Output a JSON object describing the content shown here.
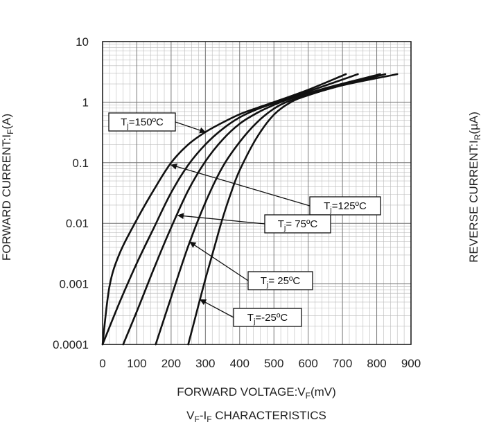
{
  "chart_data": {
    "type": "line",
    "title": "V_F-I_F CHARACTERISTICS",
    "title_parts": {
      "main_a": "V",
      "sub_a": "F",
      "main_b": "-I",
      "sub_b": "F",
      "main_c": " CHARACTERISTICS"
    },
    "xlabel": "FORWARD VOLTAGE:V_F(mV)",
    "xlabel_parts": {
      "main": "FORWARD VOLTAGE:V",
      "sub": "F",
      "tail": "(mV)"
    },
    "ylabel": "FORWARD CURRENT:I_F(A)",
    "ylabel_parts": {
      "main": "FORWARD CURRENT:I",
      "sub": "F",
      "tail": "(A)"
    },
    "ylabel_right": "REVERSE CURRENT:I_R(µA)",
    "ylabel_right_parts": {
      "main": "REVERSE CURRENT:I",
      "sub": "R",
      "tail": "(µA)"
    },
    "xlim": [
      0,
      900
    ],
    "ylim": [
      0.0001,
      10
    ],
    "yscale": "log",
    "grid": true,
    "x_ticks": [
      "0",
      "100",
      "200",
      "300",
      "400",
      "500",
      "600",
      "700",
      "800",
      "900"
    ],
    "y_ticks": [
      "10",
      "1",
      "0.1",
      "0.01",
      "0.001",
      "0.0001"
    ],
    "series": [
      {
        "name": "Tj=150ºC",
        "label_parts": {
          "a": "T",
          "sub": "j",
          "b": "=150ºC"
        },
        "x": [
          0,
          20,
          50,
          100,
          150,
          200,
          250,
          300,
          350,
          400,
          450,
          500,
          600,
          710
        ],
        "y": [
          0.0001,
          0.0009,
          0.0032,
          0.0115,
          0.036,
          0.1,
          0.2,
          0.32,
          0.46,
          0.63,
          0.8,
          1.0,
          1.6,
          2.9
        ]
      },
      {
        "name": "Tj=125ºC",
        "label_parts": {
          "a": "T",
          "sub": "j",
          "b": "=125ºC"
        },
        "x": [
          0,
          50,
          100,
          150,
          200,
          250,
          300,
          350,
          400,
          450,
          500,
          600,
          745
        ],
        "y": [
          0.0001,
          0.0005,
          0.0022,
          0.0085,
          0.032,
          0.092,
          0.2,
          0.36,
          0.56,
          0.76,
          0.96,
          1.5,
          2.9
        ]
      },
      {
        "name": "Tj= 75ºC",
        "label_parts": {
          "a": "T",
          "sub": "j",
          "b": "= 75ºC"
        },
        "x": [
          60,
          100,
          150,
          200,
          250,
          300,
          350,
          400,
          450,
          500,
          550,
          650,
          810
        ],
        "y": [
          0.0001,
          0.00035,
          0.0018,
          0.0085,
          0.035,
          0.105,
          0.24,
          0.44,
          0.66,
          0.9,
          1.15,
          1.7,
          2.9
        ]
      },
      {
        "name": "Tj= 25ºC",
        "label_parts": {
          "a": "T",
          "sub": "j",
          "b": "= 25ºC"
        },
        "x": [
          155,
          200,
          250,
          300,
          350,
          400,
          450,
          500,
          550,
          650,
          825
        ],
        "y": [
          0.0001,
          0.0006,
          0.0042,
          0.022,
          0.085,
          0.22,
          0.46,
          0.78,
          1.07,
          1.6,
          2.9
        ]
      },
      {
        "name": "Tj=-25ºC",
        "label_parts": {
          "a": "T",
          "sub": "j",
          "b": "=-25ºC"
        },
        "x": [
          250,
          275,
          300,
          325,
          350,
          375,
          400,
          450,
          500,
          550,
          600,
          700,
          860
        ],
        "y": [
          0.0001,
          0.00035,
          0.0012,
          0.0038,
          0.012,
          0.032,
          0.075,
          0.26,
          0.62,
          1.0,
          1.3,
          1.9,
          2.9
        ]
      }
    ],
    "annotations": [
      {
        "series": "Tj=150ºC",
        "point_x": 300,
        "point_y": 0.32
      },
      {
        "series": "Tj=125ºC",
        "point_x": 200,
        "point_y": 0.092
      },
      {
        "series": "Tj= 75ºC",
        "point_x": 220,
        "point_y": 0.0135
      },
      {
        "series": "Tj= 25ºC",
        "point_x": 255,
        "point_y": 0.0049
      },
      {
        "series": "Tj=-25ºC",
        "point_x": 285,
        "point_y": 0.00055
      }
    ]
  }
}
